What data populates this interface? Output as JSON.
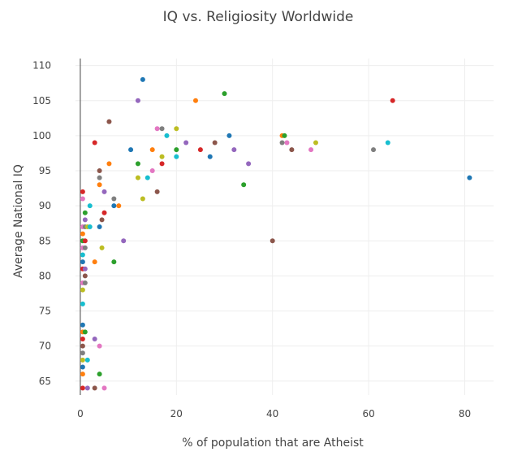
{
  "chart_data": {
    "type": "scatter",
    "title": "IQ vs. Religiosity Worldwide",
    "xlabel": "% of population that are Atheist",
    "ylabel": "Average National IQ",
    "xlim": [
      -1,
      86
    ],
    "ylim": [
      63,
      111
    ],
    "x_ticks": [
      "0",
      "20",
      "40",
      "60",
      "80"
    ],
    "y_ticks": [
      "65",
      "70",
      "75",
      "80",
      "85",
      "90",
      "95",
      "100",
      "105",
      "110"
    ],
    "grid": true,
    "legend": "none",
    "palette": [
      "#1f77b4",
      "#ff7f0e",
      "#2ca02c",
      "#d62728",
      "#9467bd",
      "#8c564b",
      "#e377c2",
      "#7f7f7f",
      "#bcbd22",
      "#17becf"
    ],
    "points": [
      {
        "x": 13,
        "y": 108
      },
      {
        "x": 24,
        "y": 105
      },
      {
        "x": 30,
        "y": 106
      },
      {
        "x": 65,
        "y": 105
      },
      {
        "x": 12,
        "y": 105
      },
      {
        "x": 6,
        "y": 102
      },
      {
        "x": 16,
        "y": 101
      },
      {
        "x": 17,
        "y": 101
      },
      {
        "x": 20,
        "y": 101
      },
      {
        "x": 18,
        "y": 100
      },
      {
        "x": 31,
        "y": 100
      },
      {
        "x": 42,
        "y": 100
      },
      {
        "x": 42.5,
        "y": 100
      },
      {
        "x": 3,
        "y": 99
      },
      {
        "x": 22,
        "y": 99
      },
      {
        "x": 28,
        "y": 99
      },
      {
        "x": 43,
        "y": 99
      },
      {
        "x": 42,
        "y": 99
      },
      {
        "x": 49,
        "y": 99
      },
      {
        "x": 64,
        "y": 99
      },
      {
        "x": 10.5,
        "y": 98
      },
      {
        "x": 15,
        "y": 98
      },
      {
        "x": 20,
        "y": 98
      },
      {
        "x": 25,
        "y": 98
      },
      {
        "x": 32,
        "y": 98
      },
      {
        "x": 44,
        "y": 98
      },
      {
        "x": 48,
        "y": 98
      },
      {
        "x": 61,
        "y": 98
      },
      {
        "x": 17,
        "y": 97
      },
      {
        "x": 20,
        "y": 97
      },
      {
        "x": 27,
        "y": 97
      },
      {
        "x": 6,
        "y": 96
      },
      {
        "x": 12,
        "y": 96
      },
      {
        "x": 17,
        "y": 96
      },
      {
        "x": 35,
        "y": 96
      },
      {
        "x": 4,
        "y": 95
      },
      {
        "x": 15,
        "y": 95
      },
      {
        "x": 4,
        "y": 94
      },
      {
        "x": 12,
        "y": 94
      },
      {
        "x": 14,
        "y": 94
      },
      {
        "x": 81,
        "y": 94
      },
      {
        "x": 4,
        "y": 93
      },
      {
        "x": 34,
        "y": 93
      },
      {
        "x": 0.5,
        "y": 92
      },
      {
        "x": 5,
        "y": 92
      },
      {
        "x": 16,
        "y": 92
      },
      {
        "x": 0.5,
        "y": 91
      },
      {
        "x": 7,
        "y": 91
      },
      {
        "x": 13,
        "y": 91
      },
      {
        "x": 2,
        "y": 90
      },
      {
        "x": 7,
        "y": 90
      },
      {
        "x": 8,
        "y": 90
      },
      {
        "x": 1,
        "y": 89
      },
      {
        "x": 5,
        "y": 89
      },
      {
        "x": 1,
        "y": 88
      },
      {
        "x": 4.5,
        "y": 88
      },
      {
        "x": 0.5,
        "y": 87
      },
      {
        "x": 1,
        "y": 87
      },
      {
        "x": 1.5,
        "y": 87
      },
      {
        "x": 2,
        "y": 87
      },
      {
        "x": 4,
        "y": 87
      },
      {
        "x": 0.5,
        "y": 86
      },
      {
        "x": 0.5,
        "y": 85
      },
      {
        "x": 1,
        "y": 85
      },
      {
        "x": 9,
        "y": 85
      },
      {
        "x": 40,
        "y": 85
      },
      {
        "x": 0.5,
        "y": 84
      },
      {
        "x": 1,
        "y": 84
      },
      {
        "x": 4.5,
        "y": 84
      },
      {
        "x": 0.5,
        "y": 83
      },
      {
        "x": 0.5,
        "y": 82
      },
      {
        "x": 3,
        "y": 82
      },
      {
        "x": 7,
        "y": 82
      },
      {
        "x": 0.5,
        "y": 81
      },
      {
        "x": 1,
        "y": 81
      },
      {
        "x": 1,
        "y": 80
      },
      {
        "x": 0.5,
        "y": 79
      },
      {
        "x": 1,
        "y": 79
      },
      {
        "x": 0.5,
        "y": 78
      },
      {
        "x": 0.5,
        "y": 76
      },
      {
        "x": 0.5,
        "y": 73
      },
      {
        "x": 0.5,
        "y": 72
      },
      {
        "x": 1,
        "y": 72
      },
      {
        "x": 0.5,
        "y": 71
      },
      {
        "x": 3,
        "y": 71
      },
      {
        "x": 0.5,
        "y": 70
      },
      {
        "x": 4,
        "y": 70
      },
      {
        "x": 0.5,
        "y": 69
      },
      {
        "x": 0.5,
        "y": 68
      },
      {
        "x": 1.5,
        "y": 68
      },
      {
        "x": 0.5,
        "y": 67
      },
      {
        "x": 0.5,
        "y": 66
      },
      {
        "x": 4,
        "y": 66
      },
      {
        "x": 0.5,
        "y": 64
      },
      {
        "x": 1.5,
        "y": 64
      },
      {
        "x": 3,
        "y": 64
      },
      {
        "x": 5,
        "y": 64
      }
    ]
  }
}
